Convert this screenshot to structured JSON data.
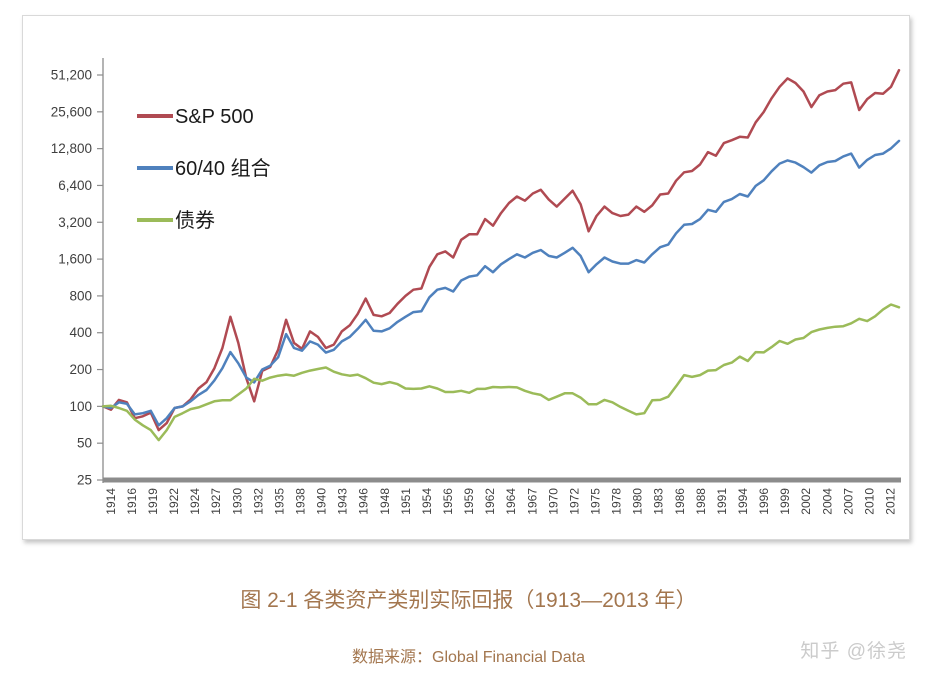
{
  "page": {
    "caption": "图 2-1 各类资产类别实际回报（1913—2013 年）",
    "source_label": "数据来源：Global Financial Data",
    "watermark": "知乎 @徐尧",
    "caption_color": "#a3764e",
    "watermark_color": "#cbcbcb"
  },
  "chart_data": {
    "type": "line",
    "title": "",
    "xlabel": "",
    "ylabel": "",
    "y_scale": "log2",
    "ylim": [
      25,
      51200
    ],
    "y_ticks": [
      25,
      50,
      100,
      200,
      400,
      800,
      1600,
      3200,
      6400,
      12800,
      25600,
      51200
    ],
    "x_tick_labels": [
      "1914",
      "1916",
      "1919",
      "1922",
      "1924",
      "1927",
      "1930",
      "1932",
      "1935",
      "1938",
      "1940",
      "1943",
      "1946",
      "1948",
      "1951",
      "1954",
      "1956",
      "1959",
      "1962",
      "1964",
      "1967",
      "1970",
      "1972",
      "1975",
      "1978",
      "1980",
      "1983",
      "1986",
      "1988",
      "1991",
      "1994",
      "1996",
      "1999",
      "2002",
      "2004",
      "2007",
      "2010",
      "2012"
    ],
    "grid": false,
    "legend_position": "top-left",
    "axis_color": "#8c8c8c",
    "tick_label_color": "#3f3f3f",
    "x": [
      1913,
      1914,
      1915,
      1916,
      1917,
      1918,
      1919,
      1920,
      1921,
      1922,
      1923,
      1924,
      1925,
      1926,
      1927,
      1928,
      1929,
      1930,
      1931,
      1932,
      1933,
      1934,
      1935,
      1936,
      1937,
      1938,
      1939,
      1940,
      1941,
      1942,
      1943,
      1944,
      1945,
      1946,
      1947,
      1948,
      1949,
      1950,
      1951,
      1952,
      1953,
      1954,
      1955,
      1956,
      1957,
      1958,
      1959,
      1960,
      1961,
      1962,
      1963,
      1964,
      1965,
      1966,
      1967,
      1968,
      1969,
      1970,
      1971,
      1972,
      1973,
      1974,
      1975,
      1976,
      1977,
      1978,
      1979,
      1980,
      1981,
      1982,
      1983,
      1984,
      1985,
      1986,
      1987,
      1988,
      1989,
      1990,
      1991,
      1992,
      1993,
      1994,
      1995,
      1996,
      1997,
      1998,
      1999,
      2000,
      2001,
      2002,
      2003,
      2004,
      2005,
      2006,
      2007,
      2008,
      2009,
      2010,
      2011,
      2012,
      2013
    ],
    "series": [
      {
        "name": "S&P 500",
        "color": "#b04a52",
        "values": [
          100,
          94,
          113,
          108,
          80,
          83,
          89,
          64,
          73,
          97,
          100,
          114,
          140,
          158,
          205,
          300,
          540,
          330,
          170,
          110,
          195,
          210,
          290,
          510,
          330,
          295,
          410,
          370,
          300,
          320,
          410,
          460,
          570,
          760,
          560,
          545,
          580,
          690,
          800,
          900,
          920,
          1380,
          1750,
          1850,
          1650,
          2300,
          2550,
          2550,
          3400,
          3000,
          3800,
          4600,
          5200,
          4800,
          5500,
          5900,
          4900,
          4300,
          5000,
          5800,
          4500,
          2700,
          3600,
          4300,
          3800,
          3600,
          3700,
          4300,
          3900,
          4400,
          5400,
          5500,
          7000,
          8200,
          8400,
          9500,
          12000,
          11200,
          14200,
          15000,
          16000,
          15800,
          21000,
          25500,
          33000,
          41000,
          48000,
          44000,
          37500,
          28000,
          35000,
          37500,
          38500,
          43500,
          44500,
          26500,
          32500,
          36500,
          36000,
          41000,
          56000
        ]
      },
      {
        "name": "60/40 组合",
        "color": "#4f81bd",
        "values": [
          100,
          97,
          108,
          105,
          86,
          88,
          92,
          70,
          80,
          97,
          100,
          110,
          124,
          136,
          163,
          205,
          278,
          225,
          172,
          157,
          200,
          215,
          252,
          390,
          300,
          285,
          340,
          320,
          275,
          290,
          340,
          370,
          430,
          510,
          415,
          410,
          435,
          490,
          540,
          590,
          600,
          780,
          900,
          930,
          870,
          1070,
          1150,
          1180,
          1400,
          1250,
          1450,
          1600,
          1750,
          1650,
          1800,
          1900,
          1700,
          1650,
          1800,
          1980,
          1700,
          1250,
          1450,
          1650,
          1530,
          1470,
          1470,
          1570,
          1500,
          1750,
          2000,
          2100,
          2600,
          3050,
          3100,
          3400,
          4050,
          3900,
          4700,
          4950,
          5450,
          5200,
          6350,
          7050,
          8350,
          9650,
          10250,
          9850,
          9050,
          8150,
          9350,
          9950,
          10150,
          11050,
          11650,
          8950,
          10350,
          11350,
          11650,
          12850,
          14800
        ]
      },
      {
        "name": "债券",
        "color": "#9bbb59",
        "values": [
          100,
          101,
          97,
          92,
          78,
          70,
          64,
          53,
          64,
          82,
          88,
          95,
          98,
          104,
          110,
          112,
          112,
          125,
          140,
          168,
          162,
          172,
          178,
          182,
          178,
          188,
          196,
          202,
          208,
          192,
          183,
          178,
          182,
          170,
          156,
          152,
          158,
          152,
          140,
          139,
          140,
          146,
          140,
          131,
          131,
          134,
          129,
          139,
          139,
          144,
          143,
          144,
          143,
          134,
          128,
          124,
          113,
          120,
          128,
          128,
          118,
          104,
          104,
          113,
          108,
          99,
          92,
          86,
          88,
          112,
          113,
          120,
          146,
          180,
          174,
          180,
          196,
          198,
          218,
          228,
          255,
          235,
          278,
          276,
          305,
          342,
          325,
          352,
          362,
          405,
          425,
          438,
          448,
          452,
          478,
          520,
          498,
          545,
          620,
          680,
          645
        ]
      }
    ]
  }
}
